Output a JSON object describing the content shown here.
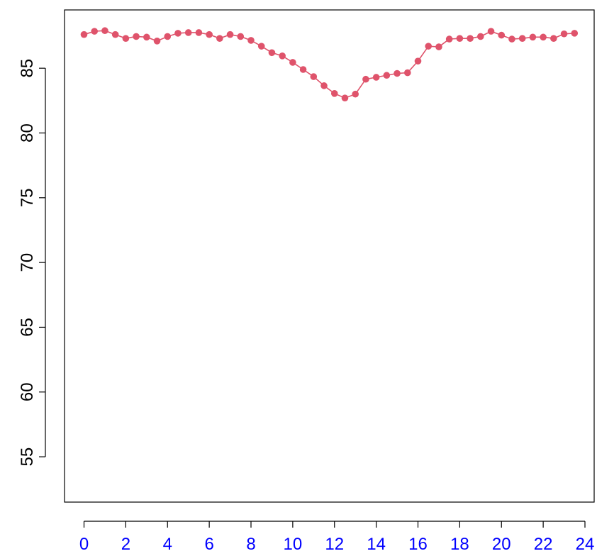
{
  "colors": {
    "series": "#df536b",
    "x_tick_labels": "#0000ff",
    "y_tick_labels": "#000000",
    "axes": "#000000",
    "background": "#ffffff"
  },
  "chart_data": {
    "type": "line",
    "title": "",
    "xlabel": "",
    "ylabel": "",
    "xlim": [
      0,
      24
    ],
    "ylim": [
      51.5,
      89.5
    ],
    "grid": false,
    "markers": "filled-circle",
    "x_ticks": [
      0,
      2,
      4,
      6,
      8,
      10,
      12,
      14,
      16,
      18,
      20,
      22,
      24
    ],
    "x_tick_labels": [
      "0",
      "2",
      "4",
      "6",
      "8",
      "10",
      "12",
      "14",
      "16",
      "18",
      "20",
      "22",
      "24"
    ],
    "y_ticks": [
      55,
      60,
      65,
      70,
      75,
      80,
      85
    ],
    "y_tick_labels": [
      "55",
      "60",
      "65",
      "70",
      "75",
      "80",
      "85"
    ],
    "series": [
      {
        "x": [
          0,
          0.5,
          1,
          1.5,
          2,
          2.5,
          3,
          3.5,
          4,
          4.5,
          5,
          5.5,
          6,
          6.5,
          7,
          7.5,
          8,
          8.5,
          9,
          9.5,
          10,
          10.5,
          11,
          11.5,
          12,
          12.5,
          13,
          13.5,
          14,
          14.5,
          15,
          15.5,
          16,
          16.5,
          17,
          17.5,
          18,
          18.5,
          19,
          19.5,
          20,
          20.5,
          21,
          21.5,
          22,
          22.5,
          23,
          23.5
        ],
        "values": [
          87.6,
          87.85,
          87.9,
          87.6,
          87.3,
          87.45,
          87.4,
          87.1,
          87.45,
          87.7,
          87.75,
          87.75,
          87.6,
          87.3,
          87.6,
          87.45,
          87.15,
          86.7,
          86.2,
          85.95,
          85.45,
          84.9,
          84.35,
          83.65,
          83.05,
          82.7,
          83.0,
          84.15,
          84.3,
          84.45,
          84.6,
          84.65,
          85.55,
          86.7,
          86.65,
          87.25,
          87.3,
          87.3,
          87.45,
          87.85,
          87.55,
          87.25,
          87.3,
          87.4,
          87.4,
          87.3,
          87.65,
          87.7
        ]
      }
    ]
  }
}
